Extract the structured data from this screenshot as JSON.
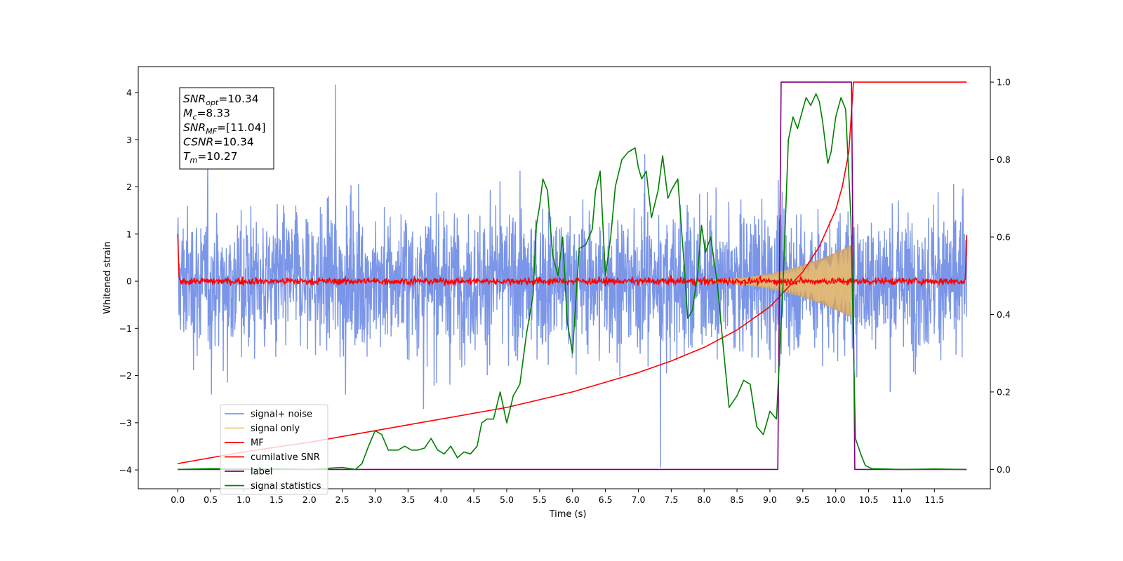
{
  "chart_data": {
    "type": "line",
    "xlabel": "Time (s)",
    "ylabel": "Whitened strain",
    "xlim": [
      -0.6,
      12.35
    ],
    "ylim": [
      -4.4,
      4.55
    ],
    "y2lim": [
      -0.05,
      1.04
    ],
    "x_ticks": [
      "0.0",
      "0.5",
      "1.0",
      "1.5",
      "2.0",
      "2.5",
      "3.0",
      "3.5",
      "4.0",
      "4.5",
      "5.0",
      "5.5",
      "6.0",
      "6.5",
      "7.0",
      "7.5",
      "8.0",
      "8.5",
      "9.0",
      "9.5",
      "10.0",
      "10.5",
      "11.0",
      "11.5"
    ],
    "y_ticks": [
      "4",
      "3",
      "2",
      "1",
      "0",
      "−1",
      "−2",
      "−3",
      "−4"
    ],
    "y2_ticks": [
      "1.0",
      "0.8",
      "0.6",
      "0.4",
      "0.2",
      "0.0"
    ],
    "info_box": [
      {
        "sym": "SNR",
        "sub": "opt",
        "val": "=10.34"
      },
      {
        "sym": "M",
        "sub": "c",
        "val": "=8.33"
      },
      {
        "sym": "SNR",
        "sub": "MF",
        "val": "=[11.04]"
      },
      {
        "sym": "CSNR",
        "sub": "",
        "val": "=10.34"
      },
      {
        "sym": "T",
        "sub": "m",
        "val": "=10.27"
      }
    ],
    "legend": [
      "signal+ noise",
      "signal only",
      "MF",
      "cumilative SNR",
      "label",
      "signal statistics"
    ],
    "legend_placement": "lower-left",
    "colors": {
      "signal_noise": "#7b96e8",
      "signal_only": "#f2c87c",
      "signal_only_fill": "#c9a06a",
      "mf": "#ff0000",
      "cumulative_snr": "#ff0000",
      "label": "#800080",
      "statistics": "#008000"
    },
    "series": [
      {
        "name": "signal+ noise",
        "axis": "left",
        "description_of_values": "dense noise band",
        "t_range": [
          0,
          11.99
        ],
        "envelope": [
          -2.6,
          2.5
        ],
        "peak_extremes": [
          4.17,
          -3.95
        ]
      },
      {
        "name": "signal only",
        "axis": "left",
        "t_range": [
          8.0,
          10.27
        ],
        "amplitude_at_end": 0.75
      },
      {
        "name": "MF",
        "axis": "left",
        "t_range": [
          0,
          11.99
        ],
        "start_value": 1.0,
        "end_value": 0.98,
        "noise_band": 0.15
      },
      {
        "name": "cumilative SNR",
        "axis": "right",
        "x": [
          0.0,
          1.0,
          2.0,
          3.0,
          4.0,
          5.0,
          6.0,
          7.0,
          7.5,
          8.0,
          8.5,
          9.0,
          9.5,
          9.75,
          10.0,
          10.1,
          10.2,
          10.27,
          11.99
        ],
        "values": [
          0.015,
          0.045,
          0.07,
          0.1,
          0.13,
          0.16,
          0.2,
          0.25,
          0.28,
          0.315,
          0.36,
          0.42,
          0.51,
          0.575,
          0.67,
          0.73,
          0.82,
          1.0,
          1.0
        ]
      },
      {
        "name": "label",
        "axis": "right",
        "x": [
          0.0,
          9.12,
          9.17,
          10.24,
          10.29,
          11.99
        ],
        "values": [
          0.0,
          0.0,
          1.0,
          1.0,
          0.0,
          0.0
        ]
      },
      {
        "name": "signal statistics",
        "axis": "right",
        "x": [
          0.0,
          0.5,
          1.0,
          1.5,
          2.0,
          2.5,
          2.7,
          2.8,
          2.9,
          3.0,
          3.1,
          3.2,
          3.35,
          3.45,
          3.55,
          3.65,
          3.75,
          3.85,
          3.95,
          4.05,
          4.15,
          4.25,
          4.35,
          4.45,
          4.55,
          4.62,
          4.7,
          4.8,
          4.9,
          5.0,
          5.1,
          5.2,
          5.3,
          5.4,
          5.45,
          5.5,
          5.55,
          5.62,
          5.7,
          5.78,
          5.85,
          5.92,
          6.0,
          6.1,
          6.2,
          6.3,
          6.35,
          6.42,
          6.5,
          6.58,
          6.65,
          6.75,
          6.85,
          6.95,
          7.0,
          7.05,
          7.12,
          7.2,
          7.3,
          7.37,
          7.45,
          7.5,
          7.6,
          7.7,
          7.75,
          7.82,
          7.9,
          7.96,
          8.02,
          8.1,
          8.2,
          8.3,
          8.38,
          8.5,
          8.6,
          8.7,
          8.8,
          8.9,
          9.0,
          9.1,
          9.2,
          9.28,
          9.35,
          9.42,
          9.5,
          9.55,
          9.62,
          9.7,
          9.75,
          9.8,
          9.88,
          9.93,
          10.0,
          10.08,
          10.15,
          10.23,
          10.3,
          10.38,
          10.45,
          10.55,
          11.0,
          11.5,
          11.99
        ],
        "values": [
          0.0,
          0.002,
          0.001,
          0.002,
          0.0,
          0.005,
          0.0,
          0.015,
          0.06,
          0.1,
          0.09,
          0.05,
          0.05,
          0.06,
          0.05,
          0.05,
          0.055,
          0.08,
          0.05,
          0.04,
          0.06,
          0.03,
          0.045,
          0.04,
          0.06,
          0.12,
          0.13,
          0.13,
          0.2,
          0.12,
          0.19,
          0.22,
          0.35,
          0.45,
          0.63,
          0.68,
          0.75,
          0.72,
          0.55,
          0.5,
          0.6,
          0.38,
          0.3,
          0.57,
          0.58,
          0.62,
          0.72,
          0.77,
          0.5,
          0.6,
          0.73,
          0.8,
          0.82,
          0.83,
          0.78,
          0.75,
          0.77,
          0.65,
          0.72,
          0.81,
          0.7,
          0.72,
          0.75,
          0.52,
          0.39,
          0.41,
          0.5,
          0.63,
          0.56,
          0.6,
          0.48,
          0.3,
          0.16,
          0.19,
          0.23,
          0.22,
          0.11,
          0.09,
          0.15,
          0.13,
          0.48,
          0.85,
          0.91,
          0.88,
          0.93,
          0.96,
          0.94,
          0.97,
          0.95,
          0.9,
          0.79,
          0.82,
          0.91,
          0.96,
          0.93,
          0.65,
          0.08,
          0.04,
          0.01,
          0.002,
          0.0,
          0.001,
          0.0
        ]
      }
    ]
  }
}
